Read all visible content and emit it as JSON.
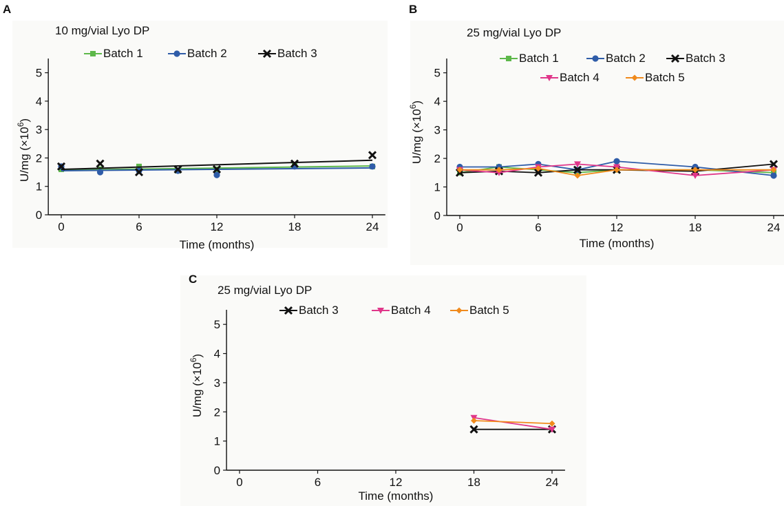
{
  "chart_data": [
    {
      "panel": "A",
      "type": "line",
      "title": "10 mg/vial Lyo DP",
      "xlabel": "Time (months)",
      "ylabel": "U/mg (×10",
      "ylabel_sup": "6",
      "ylabel_end": ")",
      "xticks": [
        "0",
        "6",
        "12",
        "18",
        "24"
      ],
      "yticks": [
        "0",
        "1",
        "2",
        "3",
        "4",
        "5"
      ],
      "xlim": [
        -1,
        25
      ],
      "ylim": [
        0,
        5.5
      ],
      "series": [
        {
          "name": "Batch 1",
          "color": "#5db84a",
          "marker": "square",
          "x": [
            0,
            3,
            6,
            9,
            12,
            18,
            24
          ],
          "y": [
            1.6,
            1.6,
            1.7,
            1.55,
            1.6,
            1.75,
            1.7
          ],
          "trend": [
            1.57,
            1.72
          ]
        },
        {
          "name": "Batch 2",
          "color": "#2f5ca8",
          "marker": "circle",
          "x": [
            0,
            3,
            6,
            9,
            12,
            18,
            24
          ],
          "y": [
            1.7,
            1.5,
            1.55,
            1.55,
            1.4,
            1.7,
            1.7
          ],
          "trend": [
            1.55,
            1.65
          ]
        },
        {
          "name": "Batch 3",
          "color": "#111111",
          "marker": "x",
          "x": [
            0,
            3,
            6,
            9,
            12,
            18,
            24
          ],
          "y": [
            1.7,
            1.8,
            1.5,
            1.6,
            1.6,
            1.8,
            2.1
          ],
          "trend": [
            1.6,
            1.92
          ]
        }
      ]
    },
    {
      "panel": "B",
      "type": "line",
      "title": "25 mg/vial Lyo DP",
      "xlabel": "Time (months)",
      "ylabel": "U/mg (×10",
      "ylabel_sup": "6",
      "ylabel_end": ")",
      "xticks": [
        "0",
        "6",
        "12",
        "18",
        "24"
      ],
      "yticks": [
        "0",
        "1",
        "2",
        "3",
        "4",
        "5"
      ],
      "xlim": [
        -1,
        25
      ],
      "ylim": [
        0,
        5.5
      ],
      "series": [
        {
          "name": "Batch 1",
          "color": "#5db84a",
          "marker": "square",
          "x": [
            0,
            3,
            6,
            9,
            12,
            18,
            24
          ],
          "y": [
            1.5,
            1.7,
            1.6,
            1.5,
            1.6,
            1.6,
            1.5
          ]
        },
        {
          "name": "Batch 2",
          "color": "#2f5ca8",
          "marker": "circle",
          "x": [
            0,
            3,
            6,
            9,
            12,
            18,
            24
          ],
          "y": [
            1.7,
            1.7,
            1.8,
            1.6,
            1.9,
            1.7,
            1.4
          ]
        },
        {
          "name": "Batch 3",
          "color": "#111111",
          "marker": "x",
          "x": [
            0,
            3,
            6,
            9,
            12,
            18,
            24
          ],
          "y": [
            1.5,
            1.55,
            1.5,
            1.6,
            1.6,
            1.55,
            1.8
          ]
        },
        {
          "name": "Batch 4",
          "color": "#e0368a",
          "marker": "triangle-down",
          "x": [
            0,
            3,
            6,
            9,
            12,
            18,
            24
          ],
          "y": [
            1.6,
            1.5,
            1.7,
            1.8,
            1.7,
            1.4,
            1.6
          ]
        },
        {
          "name": "Batch 5",
          "color": "#f08a1c",
          "marker": "diamond",
          "x": [
            0,
            3,
            6,
            9,
            12,
            18,
            24
          ],
          "y": [
            1.6,
            1.6,
            1.65,
            1.4,
            1.6,
            1.6,
            1.6
          ]
        }
      ]
    },
    {
      "panel": "C",
      "type": "line",
      "title": "25 mg/vial Lyo DP",
      "xlabel": "Time (months)",
      "ylabel": "U/mg (×10",
      "ylabel_sup": "6",
      "ylabel_end": ")",
      "xticks": [
        "0",
        "6",
        "12",
        "18",
        "24"
      ],
      "yticks": [
        "0",
        "1",
        "2",
        "3",
        "4",
        "5"
      ],
      "xlim": [
        -1,
        25
      ],
      "ylim": [
        0,
        5.5
      ],
      "series": [
        {
          "name": "Batch 3",
          "color": "#111111",
          "marker": "x",
          "x": [
            18,
            24
          ],
          "y": [
            1.4,
            1.4
          ]
        },
        {
          "name": "Batch 4",
          "color": "#e0368a",
          "marker": "triangle-down",
          "x": [
            18,
            24
          ],
          "y": [
            1.8,
            1.4
          ]
        },
        {
          "name": "Batch 5",
          "color": "#f08a1c",
          "marker": "diamond",
          "x": [
            18,
            24
          ],
          "y": [
            1.7,
            1.6
          ]
        }
      ]
    }
  ]
}
